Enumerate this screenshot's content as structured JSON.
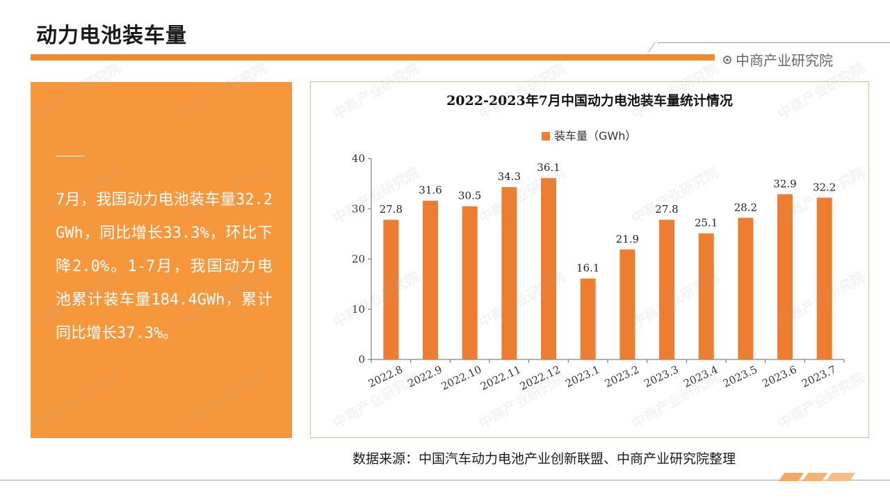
{
  "header": {
    "title": "动力电池装车量",
    "brand": "中商产业研究院"
  },
  "summary": {
    "text": "7月，我国动力电池装车量32.2GWh，同比增长33.3%，环比下降2.0%。1-7月，我国动力电池累计装车量184.4GWh，累计同比增长37.3%。"
  },
  "footer": {
    "source": "数据来源：中国汽车动力电池产业创新联盟、中商产业研究院整理"
  },
  "watermark": {
    "text": "中商产业研究院"
  },
  "colors": {
    "accent": "#f08a2c",
    "panel": "#f7973c",
    "bar": "#ed7d31"
  },
  "chart_data": {
    "type": "bar",
    "title": "2022-2023年7月中国动力电池装车量统计情况",
    "categories": [
      "2022.8",
      "2022.9",
      "2022.10",
      "2022.11",
      "2022.12",
      "2023.1",
      "2023.2",
      "2023.3",
      "2023.4",
      "2023.5",
      "2023.6",
      "2023.7"
    ],
    "series": [
      {
        "name": "装车量（GWh）",
        "values": [
          27.8,
          31.6,
          30.5,
          34.3,
          36.1,
          16.1,
          21.9,
          27.8,
          25.1,
          28.2,
          32.9,
          32.2
        ]
      }
    ],
    "data_labels": [
      "27.8",
      "31.6",
      "30.5",
      "34.3",
      "36.1",
      "16.1",
      "21.9",
      "27.8",
      "25.1",
      "28.2",
      "32.9",
      "32.2"
    ],
    "ylim": [
      0,
      40
    ],
    "yticks": [
      0,
      10,
      20,
      30,
      40
    ],
    "legend": "top",
    "grid": false
  }
}
